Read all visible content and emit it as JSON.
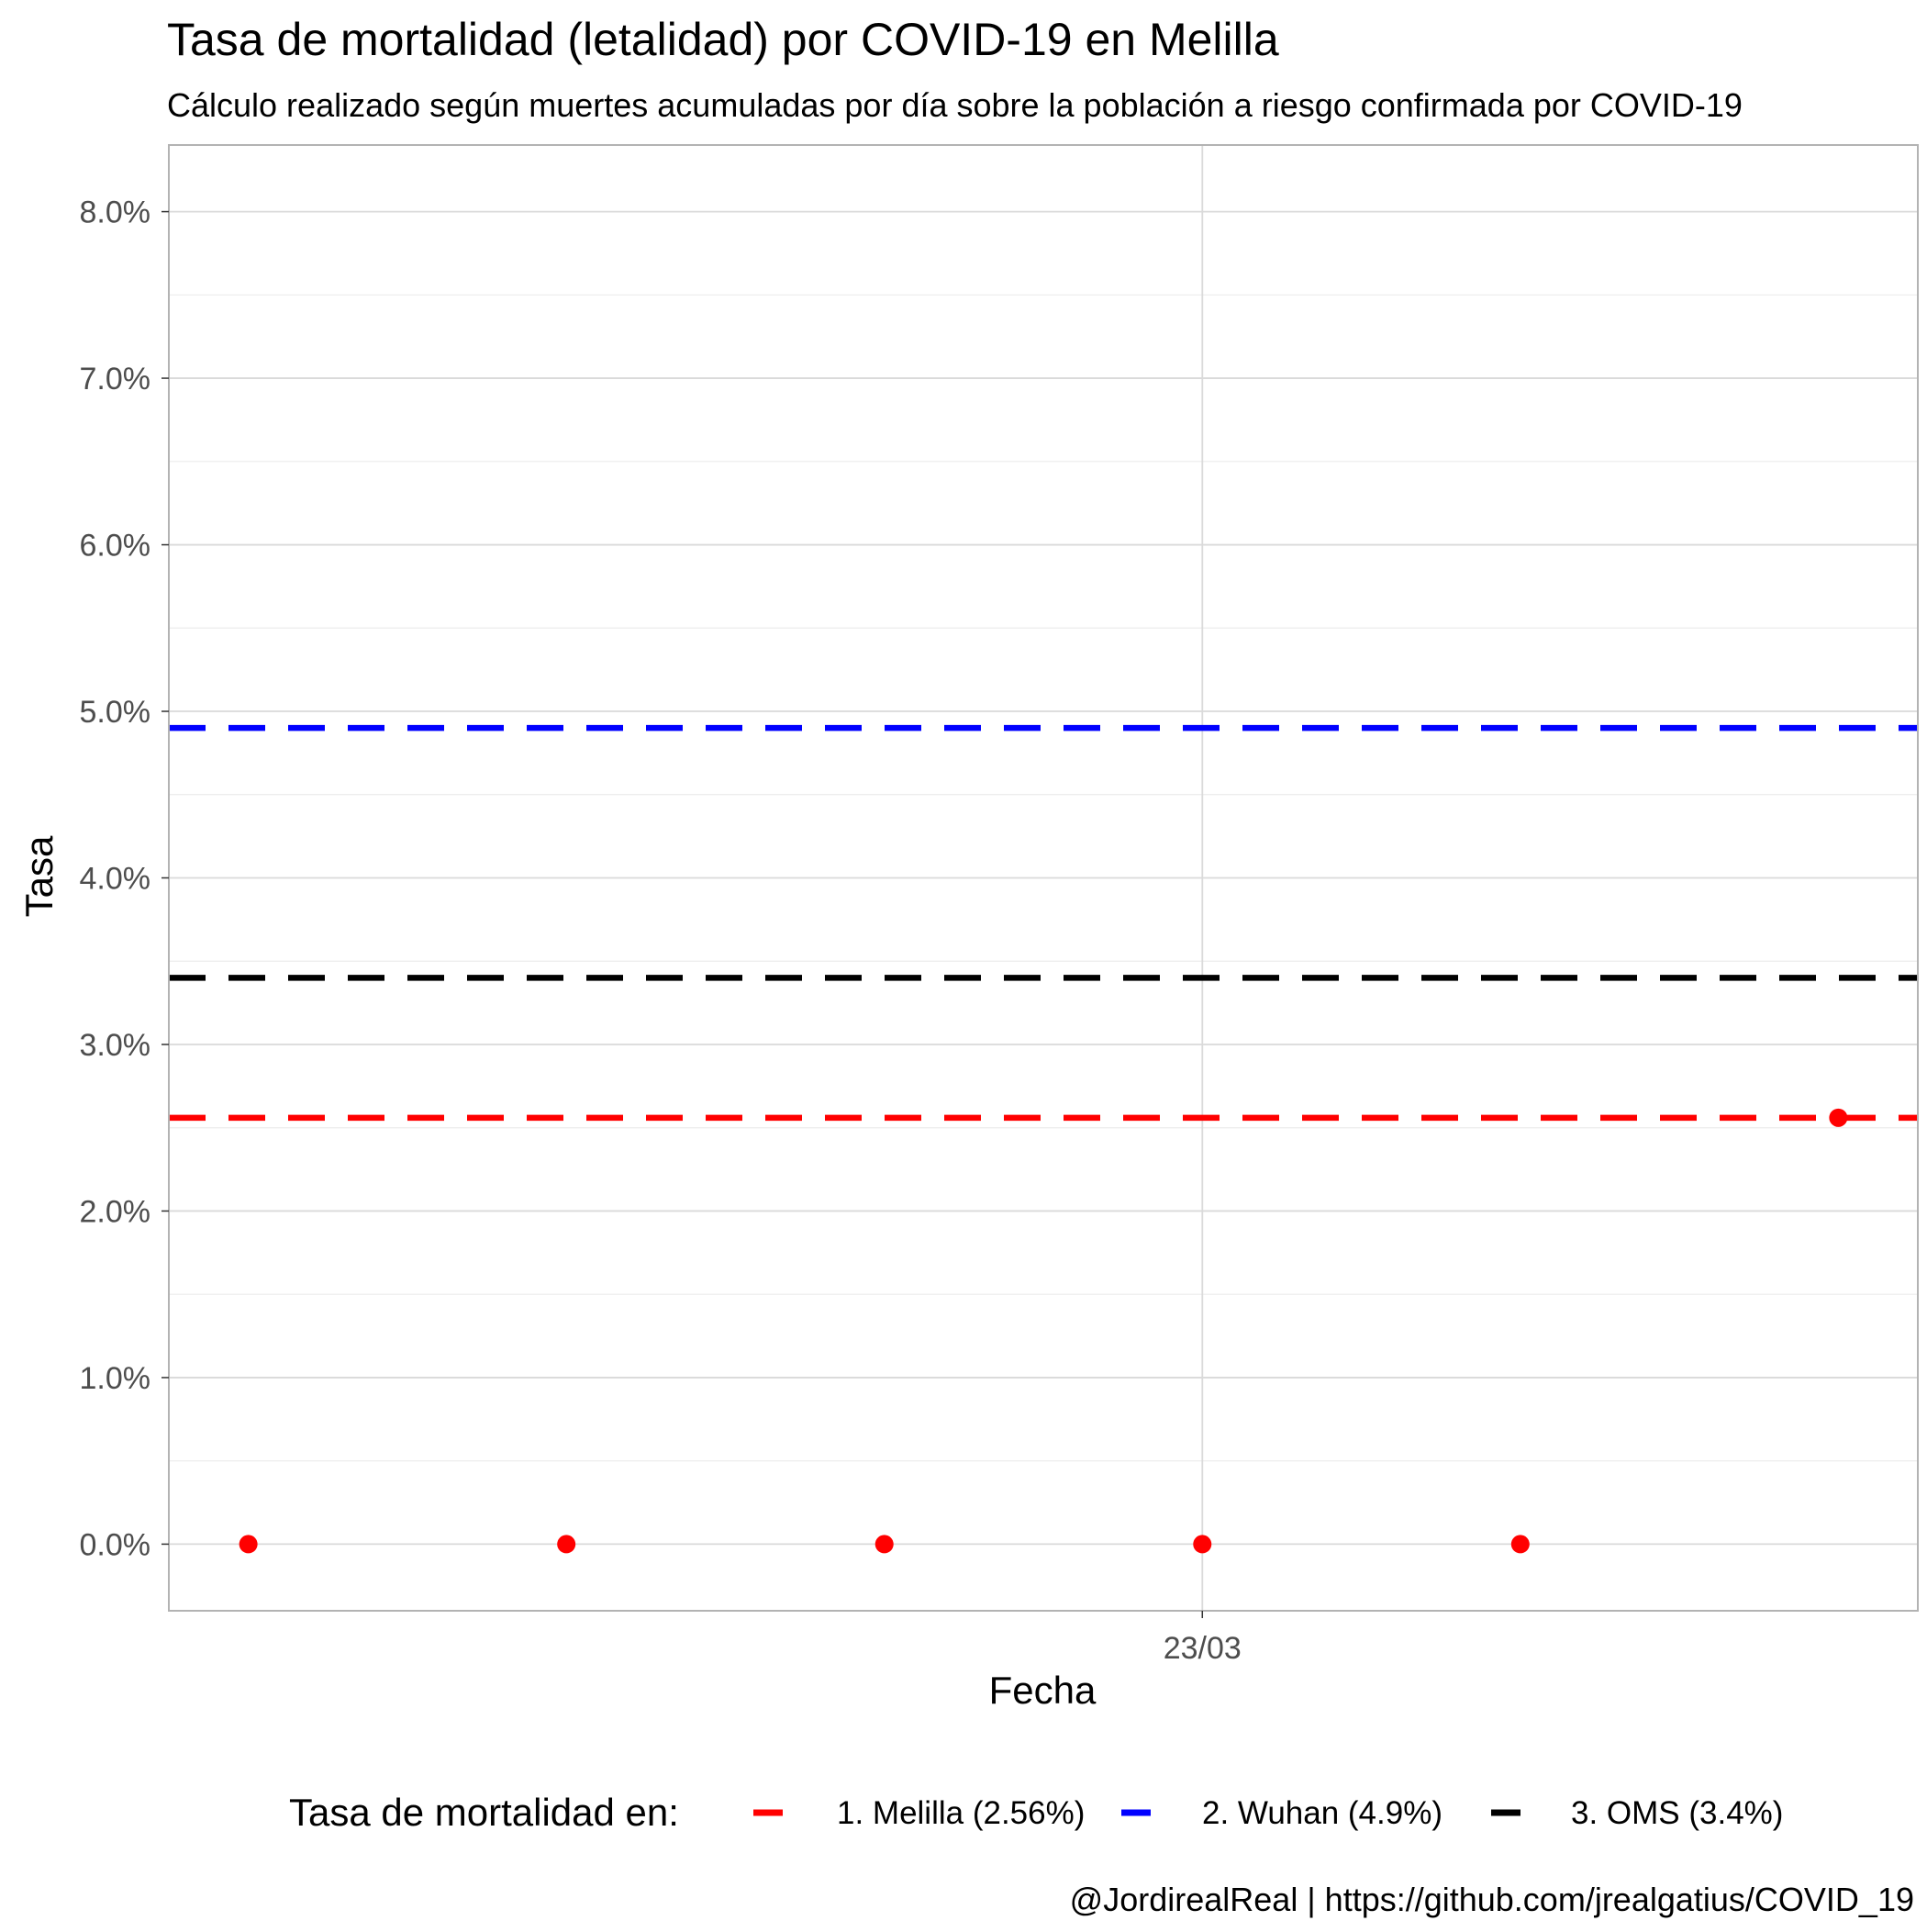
{
  "chart_data": {
    "type": "scatter",
    "title": "Tasa de mortalidad (letalidad) por COVID-19 en Melilla",
    "subtitle": "Cálculo realizado según muertes acumuladas por día sobre la población a riesgo confirmada por COVID-19",
    "xlabel": "Fecha",
    "ylabel": "Tasa",
    "x_ticks": [
      {
        "x": "2020-03-23",
        "label": "23/03"
      }
    ],
    "xlim": [
      "2020-03-19.75",
      "2020-03-25.25"
    ],
    "ylim": [
      -0.4,
      8.4
    ],
    "y_ticks": [
      0,
      1,
      2,
      3,
      4,
      5,
      6,
      7,
      8
    ],
    "y_tick_labels": [
      "0.0%",
      "1.0%",
      "2.0%",
      "3.0%",
      "4.0%",
      "5.0%",
      "6.0%",
      "7.0%",
      "8.0%"
    ],
    "y_unit": "%",
    "grid": true,
    "series": [
      {
        "color": "#ff0000",
        "points": [
          {
            "x": "2020-03-20",
            "y": 0
          },
          {
            "x": "2020-03-21",
            "y": 0
          },
          {
            "x": "2020-03-22",
            "y": 0
          },
          {
            "x": "2020-03-23",
            "y": 0
          },
          {
            "x": "2020-03-24",
            "y": 0
          },
          {
            "x": "2020-03-25",
            "y": 2.56
          }
        ]
      }
    ],
    "reference_lines": [
      {
        "name": "1. Melilla (2.56%)",
        "y": 2.56,
        "color": "#ff0000",
        "style": "dashed"
      },
      {
        "name": "2. Wuhan (4.9%)",
        "y": 4.9,
        "color": "#0000ff",
        "style": "dashed"
      },
      {
        "name": "3. OMS (3.4%)",
        "y": 3.4,
        "color": "#000000",
        "style": "dashed"
      }
    ],
    "legend": {
      "title": "Tasa de mortalidad en:",
      "position": "bottom"
    },
    "caption": "@JordirealReal | https://github.com/jrealgatius/COVID_19"
  }
}
